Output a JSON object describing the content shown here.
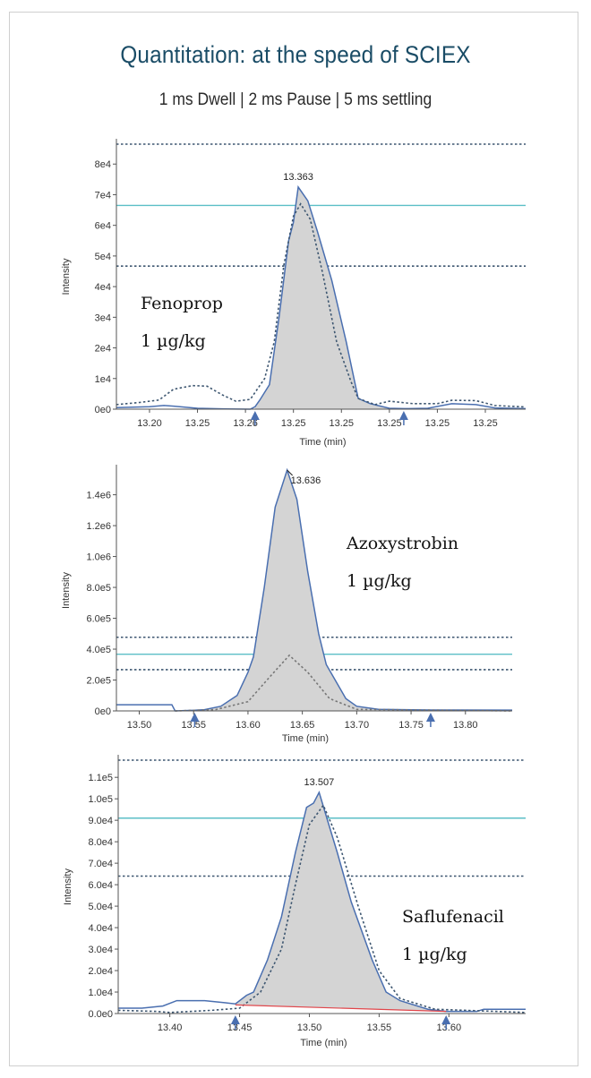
{
  "header": {
    "title": "Quantitation: at the speed of SCIEX",
    "subtitle": "1 ms Dwell | 2 ms Pause | 5 ms settling"
  },
  "colors": {
    "title": "#1a4c66",
    "trace": "#4a6fb0",
    "dashed": "#3d5670",
    "fill": "#d4d4d4",
    "cyan": "#5bbfc7",
    "baseline_red": "#e0454a",
    "axis": "#555555"
  },
  "chart_data": [
    {
      "type": "line",
      "compound": "Fenoprop",
      "concentration": "1 µg/kg",
      "xlabel": "Time (min)",
      "ylabel": "Intensity",
      "x_tick_labels": [
        "13.20",
        "13.25",
        "13.26",
        "13.25",
        "13.25",
        "13.25",
        "13.25",
        "13.25"
      ],
      "x_tick_positions": [
        0,
        1,
        2,
        3,
        4,
        5,
        6,
        7
      ],
      "xlim": [
        -0.69,
        7.84
      ],
      "y_ticks": [
        0,
        10000,
        20000,
        30000,
        40000,
        50000,
        60000,
        70000,
        80000
      ],
      "y_tick_labels": [
        "0e0",
        "1e4",
        "2e4",
        "3e4",
        "4e4",
        "5e4",
        "6e4",
        "7e4",
        "8e4"
      ],
      "ylim": [
        0,
        86500
      ],
      "peak_label": "13.363",
      "peak": {
        "x": 3.1,
        "y": 72500
      },
      "integration_markers": [
        2.2,
        5.3
      ],
      "hlines": [
        {
          "style": "dotted",
          "y": 86500
        },
        {
          "style": "solid-cyan",
          "y": 66500
        },
        {
          "style": "dotted",
          "y": 46700
        }
      ],
      "series": [
        {
          "name": "quantifier",
          "style": "solid-filled",
          "x": [
            -0.69,
            0,
            0.3,
            0.5,
            1,
            1.5,
            2.1,
            2.2,
            2.3,
            2.5,
            2.7,
            2.9,
            3.0,
            3.1,
            3.3,
            3.5,
            3.8,
            4.1,
            4.35,
            4.6,
            5.0,
            5.3,
            5.4,
            5.8,
            6.3,
            6.8,
            7.2,
            7.84
          ],
          "y": [
            500,
            800,
            1200,
            1000,
            300,
            100,
            0,
            800,
            3000,
            8000,
            30000,
            55000,
            61000,
            72500,
            68000,
            58000,
            42000,
            22000,
            3500,
            1800,
            300,
            200,
            200,
            300,
            1800,
            1500,
            400,
            200
          ]
        },
        {
          "name": "qualifier",
          "style": "dashed",
          "x": [
            -0.69,
            -0.2,
            0.2,
            0.5,
            0.9,
            1.2,
            1.5,
            1.8,
            2.1,
            2.4,
            2.6,
            2.8,
            3.0,
            3.15,
            3.35,
            3.6,
            3.9,
            4.2,
            4.35,
            4.7,
            5.0,
            5.5,
            6.0,
            6.3,
            6.8,
            7.2,
            7.84
          ],
          "y": [
            1500,
            2200,
            3000,
            6500,
            7700,
            7500,
            4800,
            2600,
            3200,
            10000,
            22000,
            47000,
            63000,
            67000,
            62000,
            45000,
            22000,
            9000,
            3500,
            1500,
            2600,
            1800,
            1800,
            2900,
            2800,
            1200,
            700
          ]
        }
      ]
    },
    {
      "type": "line",
      "compound": "Azoxystrobin",
      "concentration": "1 µg/kg",
      "xlabel": "Time (min)",
      "ylabel": "Intensity",
      "x_tick_labels": [
        "13.50",
        "13.55",
        "13.60",
        "13.65",
        "13.70",
        "13.75",
        "13.80"
      ],
      "x_tick_positions": [
        13.5,
        13.55,
        13.6,
        13.65,
        13.7,
        13.75,
        13.8
      ],
      "xlim": [
        13.479,
        13.843
      ],
      "y_ticks": [
        0,
        200000,
        400000,
        600000,
        800000,
        1000000,
        1200000,
        1400000
      ],
      "y_tick_labels": [
        "0e0",
        "2.0e5",
        "4.0e5",
        "6.0e5",
        "8.0e5",
        "1.0e6",
        "1.2e6",
        "1.4e6"
      ],
      "ylim": [
        0,
        1560000
      ],
      "peak_label": "13.636",
      "peak": {
        "x": 13.636,
        "y": 1560000
      },
      "integration_markers": [
        13.551,
        13.768
      ],
      "hlines": [
        {
          "style": "dotted",
          "y": 477000
        },
        {
          "style": "solid-cyan",
          "y": 367000
        },
        {
          "style": "dotted",
          "y": 267000
        }
      ],
      "series": [
        {
          "name": "quantifier",
          "style": "solid-filled",
          "x": [
            13.479,
            13.53,
            13.533,
            13.551,
            13.56,
            13.575,
            13.59,
            13.6,
            13.605,
            13.615,
            13.625,
            13.636,
            13.645,
            13.655,
            13.665,
            13.672,
            13.69,
            13.7,
            13.72,
            13.768,
            13.843
          ],
          "y": [
            40000,
            40000,
            0,
            4000,
            8000,
            30000,
            100000,
            250000,
            350000,
            800000,
            1320000,
            1560000,
            1370000,
            900000,
            500000,
            300000,
            80000,
            30000,
            10000,
            6000,
            5000
          ]
        },
        {
          "name": "qualifier",
          "style": "dashed",
          "x": [
            13.533,
            13.57,
            13.6,
            13.62,
            13.638,
            13.655,
            13.675,
            13.7,
            13.843
          ],
          "y": [
            0,
            8000,
            60000,
            220000,
            360000,
            250000,
            80000,
            10000,
            0
          ]
        }
      ]
    },
    {
      "type": "line",
      "compound": "Saflufenacil",
      "concentration": "1 µg/kg",
      "xlabel": "Time (min)",
      "ylabel": "Intensity",
      "x_tick_labels": [
        "13.40",
        "13.45",
        "13.50",
        "13.55",
        "13.60"
      ],
      "x_tick_positions": [
        13.4,
        13.45,
        13.5,
        13.55,
        13.6
      ],
      "xlim": [
        13.363,
        13.655
      ],
      "y_ticks": [
        0,
        10000,
        20000,
        30000,
        40000,
        50000,
        60000,
        70000,
        80000,
        90000,
        100000,
        110000
      ],
      "y_tick_labels": [
        "0.0e0",
        "1.0e4",
        "2.0e4",
        "3.0e4",
        "4.0e4",
        "5.0e4",
        "6.0e4",
        "7.0e4",
        "8.0e4",
        "9.0e4",
        "1.0e5",
        "1.1e5"
      ],
      "ylim": [
        0,
        118000
      ],
      "peak_label": "13.507",
      "peak": {
        "x": 13.507,
        "y": 103000
      },
      "integration_markers": [
        13.447,
        13.598
      ],
      "baseline": {
        "x": [
          13.447,
          13.598
        ],
        "y": [
          4000,
          1000
        ]
      },
      "hlines": [
        {
          "style": "dotted",
          "y": 118000
        },
        {
          "style": "solid-cyan",
          "y": 91000
        },
        {
          "style": "dotted",
          "y": 64000
        }
      ],
      "series": [
        {
          "name": "quantifier",
          "style": "solid-filled",
          "x": [
            13.363,
            13.38,
            13.395,
            13.405,
            13.425,
            13.44,
            13.447,
            13.455,
            13.46,
            13.47,
            13.48,
            13.49,
            13.498,
            13.503,
            13.507,
            13.513,
            13.52,
            13.53,
            13.545,
            13.555,
            13.565,
            13.585,
            13.598,
            13.62,
            13.625,
            13.655
          ],
          "y": [
            2500,
            2500,
            3500,
            6000,
            6000,
            5000,
            4500,
            8500,
            10000,
            25000,
            45000,
            75000,
            96000,
            98000,
            103000,
            90000,
            75000,
            52000,
            25000,
            10000,
            6000,
            2000,
            1000,
            1000,
            2000,
            2000
          ]
        },
        {
          "name": "qualifier",
          "style": "dashed",
          "x": [
            13.363,
            13.39,
            13.4,
            13.43,
            13.45,
            13.465,
            13.48,
            13.49,
            13.5,
            13.51,
            13.52,
            13.535,
            13.55,
            13.565,
            13.59,
            13.655
          ],
          "y": [
            1500,
            1000,
            500,
            1500,
            2500,
            10000,
            30000,
            60000,
            88000,
            97000,
            82000,
            50000,
            20000,
            7000,
            2000,
            500
          ]
        }
      ]
    }
  ]
}
